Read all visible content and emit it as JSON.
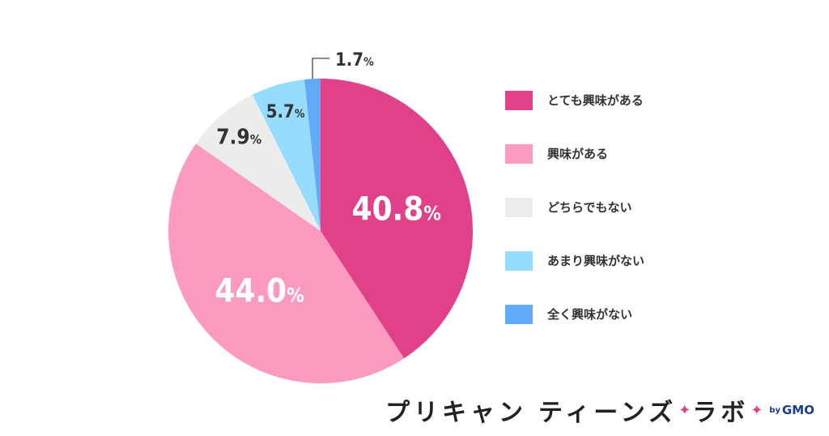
{
  "chart_data": {
    "type": "pie",
    "slices": [
      {
        "label": "とても興味がある",
        "value": 40.8,
        "display": "40.8",
        "color": "#e0418a"
      },
      {
        "label": "興味がある",
        "value": 44.0,
        "display": "44.0",
        "color": "#fc9ac2"
      },
      {
        "label": "どちらでもない",
        "value": 7.9,
        "display": "7.9",
        "color": "#ececec"
      },
      {
        "label": "あまり興味がない",
        "value": 5.7,
        "display": "5.7",
        "color": "#96dcfe"
      },
      {
        "label": "全く興味がない",
        "value": 1.7,
        "display": "1.7",
        "color": "#62a9f8"
      }
    ],
    "unit": "%",
    "legend_position": "right"
  },
  "logo": {
    "text_a": "プリキャン",
    "text_b": "ティーンズ",
    "star": "✦",
    "text_c": "ラボ",
    "by": "by",
    "gmo": "GMO"
  }
}
